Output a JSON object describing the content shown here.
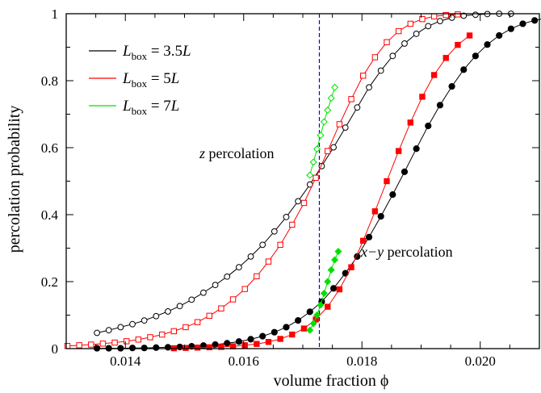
{
  "chart_data": {
    "type": "line",
    "xlabel": "volume fraction ϕ",
    "ylabel": "percolation probability",
    "xlim": [
      0.013,
      0.021
    ],
    "ylim": [
      0,
      1
    ],
    "x_ticks": [
      {
        "value": 0.014,
        "label": "0.014"
      },
      {
        "value": 0.016,
        "label": "0.016"
      },
      {
        "value": 0.018,
        "label": "0.018"
      },
      {
        "value": 0.02,
        "label": "0.020"
      }
    ],
    "y_ticks": [
      {
        "value": 0,
        "label": "0"
      },
      {
        "value": 0.2,
        "label": "0.2"
      },
      {
        "value": 0.4,
        "label": "0.4"
      },
      {
        "value": 0.6,
        "label": "0.6"
      },
      {
        "value": 0.8,
        "label": "0.8"
      },
      {
        "value": 1,
        "label": "1"
      }
    ],
    "grid": false,
    "legend_position": "top-left",
    "legend": [
      {
        "var": "L",
        "sub": "box",
        "rel": " = 3.5",
        "unit": "L",
        "color": "#000000"
      },
      {
        "var": "L",
        "sub": "box",
        "rel": " = 5",
        "unit": "L",
        "color": "#ff0000"
      },
      {
        "var": "L",
        "sub": "box",
        "rel": " = 7",
        "unit": "L",
        "color": "#00e000"
      }
    ],
    "annotations": [
      {
        "var": "z",
        "text": " percolation"
      },
      {
        "var": "x−y",
        "text": " percolation"
      }
    ],
    "vline": {
      "x": 0.01728,
      "color": "#0000cc",
      "style": "dashed"
    },
    "series": [
      {
        "color": "#000000",
        "marker": "circle",
        "filled": false,
        "points": [
          [
            0.01352,
            0.047
          ],
          [
            0.01372,
            0.055
          ],
          [
            0.01392,
            0.064
          ],
          [
            0.01412,
            0.073
          ],
          [
            0.01432,
            0.084
          ],
          [
            0.01452,
            0.097
          ],
          [
            0.01472,
            0.111
          ],
          [
            0.01492,
            0.127
          ],
          [
            0.01512,
            0.146
          ],
          [
            0.01532,
            0.167
          ],
          [
            0.01552,
            0.19
          ],
          [
            0.01572,
            0.215
          ],
          [
            0.01592,
            0.243
          ],
          [
            0.01612,
            0.275
          ],
          [
            0.01632,
            0.31
          ],
          [
            0.01652,
            0.35
          ],
          [
            0.01672,
            0.393
          ],
          [
            0.01692,
            0.44
          ],
          [
            0.01712,
            0.49
          ],
          [
            0.01732,
            0.545
          ],
          [
            0.01752,
            0.601
          ],
          [
            0.01772,
            0.66
          ],
          [
            0.01792,
            0.72
          ],
          [
            0.01812,
            0.78
          ],
          [
            0.01832,
            0.83
          ],
          [
            0.01852,
            0.874
          ],
          [
            0.01872,
            0.911
          ],
          [
            0.01892,
            0.94
          ],
          [
            0.01912,
            0.963
          ],
          [
            0.01932,
            0.978
          ],
          [
            0.01952,
            0.988
          ],
          [
            0.01972,
            0.994
          ],
          [
            0.01992,
            0.997
          ],
          [
            0.02012,
            0.999
          ],
          [
            0.02032,
            1.0
          ],
          [
            0.02052,
            1.0
          ]
        ]
      },
      {
        "color": "#ff0000",
        "marker": "square",
        "filled": false,
        "points": [
          [
            0.01302,
            0.008
          ],
          [
            0.01322,
            0.01
          ],
          [
            0.01342,
            0.012
          ],
          [
            0.01362,
            0.015
          ],
          [
            0.01382,
            0.018
          ],
          [
            0.01402,
            0.022
          ],
          [
            0.01422,
            0.027
          ],
          [
            0.01442,
            0.034
          ],
          [
            0.01462,
            0.042
          ],
          [
            0.01482,
            0.052
          ],
          [
            0.01502,
            0.064
          ],
          [
            0.01522,
            0.079
          ],
          [
            0.01542,
            0.098
          ],
          [
            0.01562,
            0.12
          ],
          [
            0.01582,
            0.147
          ],
          [
            0.01602,
            0.178
          ],
          [
            0.01622,
            0.216
          ],
          [
            0.01642,
            0.26
          ],
          [
            0.01662,
            0.31
          ],
          [
            0.01682,
            0.37
          ],
          [
            0.01702,
            0.435
          ],
          [
            0.01722,
            0.51
          ],
          [
            0.01742,
            0.59
          ],
          [
            0.01762,
            0.67
          ],
          [
            0.01782,
            0.745
          ],
          [
            0.01802,
            0.815
          ],
          [
            0.01822,
            0.87
          ],
          [
            0.01842,
            0.915
          ],
          [
            0.01862,
            0.948
          ],
          [
            0.01882,
            0.97
          ],
          [
            0.01902,
            0.984
          ],
          [
            0.01922,
            0.992
          ],
          [
            0.01942,
            0.996
          ],
          [
            0.01962,
            0.998
          ]
        ]
      },
      {
        "color": "#00e000",
        "marker": "diamond",
        "filled": false,
        "points": [
          [
            0.01712,
            0.518
          ],
          [
            0.01718,
            0.557
          ],
          [
            0.01724,
            0.596
          ],
          [
            0.0173,
            0.637
          ],
          [
            0.01736,
            0.677
          ],
          [
            0.01742,
            0.712
          ],
          [
            0.01748,
            0.748
          ],
          [
            0.01754,
            0.78
          ]
        ]
      },
      {
        "color": "#000000",
        "marker": "circle",
        "filled": true,
        "points": [
          [
            0.01352,
            0.001
          ],
          [
            0.01372,
            0.001
          ],
          [
            0.01392,
            0.001
          ],
          [
            0.01412,
            0.002
          ],
          [
            0.01432,
            0.002
          ],
          [
            0.01452,
            0.003
          ],
          [
            0.01472,
            0.004
          ],
          [
            0.01492,
            0.005
          ],
          [
            0.01512,
            0.007
          ],
          [
            0.01532,
            0.009
          ],
          [
            0.01552,
            0.012
          ],
          [
            0.01572,
            0.016
          ],
          [
            0.01592,
            0.021
          ],
          [
            0.01612,
            0.028
          ],
          [
            0.01632,
            0.037
          ],
          [
            0.01652,
            0.049
          ],
          [
            0.01672,
            0.064
          ],
          [
            0.01692,
            0.084
          ],
          [
            0.01712,
            0.11
          ],
          [
            0.01732,
            0.14
          ],
          [
            0.01752,
            0.18
          ],
          [
            0.01772,
            0.225
          ],
          [
            0.01792,
            0.275
          ],
          [
            0.01812,
            0.333
          ],
          [
            0.01832,
            0.395
          ],
          [
            0.01852,
            0.46
          ],
          [
            0.01872,
            0.528
          ],
          [
            0.01892,
            0.597
          ],
          [
            0.01912,
            0.665
          ],
          [
            0.01932,
            0.727
          ],
          [
            0.01952,
            0.783
          ],
          [
            0.01972,
            0.833
          ],
          [
            0.01992,
            0.874
          ],
          [
            0.02012,
            0.908
          ],
          [
            0.02032,
            0.935
          ],
          [
            0.02052,
            0.955
          ],
          [
            0.02072,
            0.97
          ],
          [
            0.02092,
            0.98
          ],
          [
            0.02112,
            0.987
          ]
        ]
      },
      {
        "color": "#ff0000",
        "marker": "square",
        "filled": true,
        "points": [
          [
            0.01482,
            0.001
          ],
          [
            0.01502,
            0.002
          ],
          [
            0.01522,
            0.003
          ],
          [
            0.01542,
            0.004
          ],
          [
            0.01562,
            0.005
          ],
          [
            0.01582,
            0.007
          ],
          [
            0.01602,
            0.01
          ],
          [
            0.01622,
            0.014
          ],
          [
            0.01642,
            0.02
          ],
          [
            0.01662,
            0.029
          ],
          [
            0.01682,
            0.042
          ],
          [
            0.01702,
            0.06
          ],
          [
            0.01722,
            0.087
          ],
          [
            0.01742,
            0.125
          ],
          [
            0.01762,
            0.177
          ],
          [
            0.01782,
            0.243
          ],
          [
            0.01802,
            0.322
          ],
          [
            0.01822,
            0.41
          ],
          [
            0.01842,
            0.5
          ],
          [
            0.01862,
            0.59
          ],
          [
            0.01882,
            0.675
          ],
          [
            0.01902,
            0.752
          ],
          [
            0.01922,
            0.817
          ],
          [
            0.01942,
            0.868
          ],
          [
            0.01962,
            0.907
          ],
          [
            0.01982,
            0.935
          ]
        ]
      },
      {
        "color": "#00e000",
        "marker": "diamond",
        "filled": true,
        "points": [
          [
            0.01712,
            0.055
          ],
          [
            0.01718,
            0.075
          ],
          [
            0.01724,
            0.1
          ],
          [
            0.0173,
            0.13
          ],
          [
            0.01736,
            0.165
          ],
          [
            0.01742,
            0.2
          ],
          [
            0.01748,
            0.235
          ],
          [
            0.01754,
            0.265
          ],
          [
            0.0176,
            0.29
          ]
        ]
      }
    ]
  }
}
